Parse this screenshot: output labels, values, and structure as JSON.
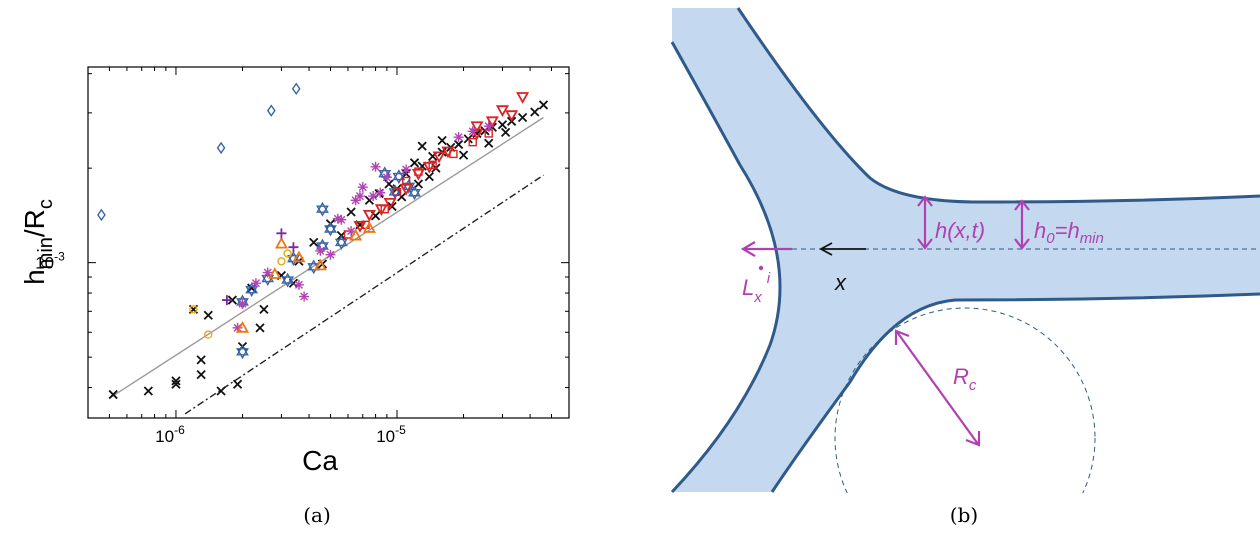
{
  "figure": {
    "caption_a": "(a)",
    "caption_b": "(b)"
  },
  "chart_data": {
    "type": "scatter",
    "x_scale": "log",
    "y_scale": "log",
    "xlabel": "Ca",
    "ylabel_main": "h",
    "ylabel_sub1": "min",
    "ylabel_mid": "/R",
    "ylabel_sub2": "c",
    "xlim": [
      4e-07,
      6e-05
    ],
    "ylim": [
      0.00032,
      0.0042
    ],
    "x_ticks": [
      {
        "value": 1e-06,
        "base": "10",
        "exp": "-6"
      },
      {
        "value": 1e-05,
        "base": "10",
        "exp": "-5"
      }
    ],
    "y_ticks": [
      {
        "value": 0.001,
        "base": "10",
        "exp": "-3"
      }
    ],
    "grid": false,
    "legend": "none",
    "colors": {
      "black": "#111111",
      "blue": "#3a64a8",
      "red": "#dd2222",
      "magenta": "#b444b4",
      "orange": "#ee7711",
      "yellow": "#e8a818",
      "purple": "#7a2a9a",
      "fit": "#999999"
    },
    "lines": [
      {
        "style": "solid",
        "color": "#999999",
        "points": [
          [
            5e-07,
            0.00037
          ],
          [
            4.6e-05,
            0.0029
          ]
        ]
      },
      {
        "style": "dashdot",
        "color": "#222222",
        "points": [
          [
            1.1e-06,
            0.00033
          ],
          [
            4.6e-05,
            0.0019
          ]
        ]
      }
    ],
    "series": [
      {
        "marker": "x",
        "color": "#111111",
        "points": [
          [
            5.2e-07,
            0.00038
          ],
          [
            7.5e-07,
            0.00039
          ],
          [
            1e-06,
            0.00041
          ],
          [
            1e-06,
            0.00042
          ],
          [
            1.3e-06,
            0.00044
          ],
          [
            1.3e-06,
            0.00049
          ],
          [
            1.6e-06,
            0.00039
          ],
          [
            1.9e-06,
            0.00041
          ],
          [
            2e-06,
            0.00054
          ],
          [
            2.4e-06,
            0.00062
          ],
          [
            1.2e-06,
            0.00071
          ],
          [
            1.4e-06,
            0.00068
          ],
          [
            1.8e-06,
            0.00076
          ],
          [
            2.2e-06,
            0.00083
          ],
          [
            2.5e-06,
            0.00071
          ],
          [
            3e-06,
            0.00091
          ],
          [
            3.4e-06,
            0.00086
          ],
          [
            3.6e-06,
            0.00101
          ],
          [
            4.2e-06,
            0.00116
          ],
          [
            4.6e-06,
            0.00099
          ],
          [
            5e-06,
            0.00133
          ],
          [
            5.6e-06,
            0.00122
          ],
          [
            6.2e-06,
            0.00145
          ],
          [
            6.8e-06,
            0.00132
          ],
          [
            7.5e-06,
            0.00158
          ],
          [
            8.3e-06,
            0.00166
          ],
          [
            9.2e-06,
            0.00178
          ],
          [
            1e-05,
            0.00172
          ],
          [
            1.1e-05,
            0.00192
          ],
          [
            1.2e-05,
            0.00208
          ],
          [
            1.3e-05,
            0.00203
          ],
          [
            1.45e-05,
            0.00218
          ],
          [
            1.6e-05,
            0.00225
          ],
          [
            1.75e-05,
            0.00233
          ],
          [
            1.9e-05,
            0.00238
          ],
          [
            2.1e-05,
            0.00248
          ],
          [
            2.3e-05,
            0.00258
          ],
          [
            2.5e-05,
            0.00263
          ],
          [
            2.7e-05,
            0.0027
          ],
          [
            3e-05,
            0.00275
          ],
          [
            3.3e-05,
            0.00282
          ],
          [
            3.7e-05,
            0.0029
          ],
          [
            4.2e-05,
            0.00302
          ],
          [
            4.6e-05,
            0.00318
          ],
          [
            8e-06,
            0.00141
          ],
          [
            9.5e-06,
            0.00151
          ],
          [
            1.05e-05,
            0.00162
          ],
          [
            1.25e-05,
            0.00178
          ],
          [
            1.4e-05,
            0.00188
          ],
          [
            1.5e-05,
            0.002
          ],
          [
            2e-05,
            0.0022
          ],
          [
            2.6e-05,
            0.0024
          ],
          [
            3.1e-05,
            0.0026
          ],
          [
            1.3e-05,
            0.00235
          ],
          [
            1.6e-05,
            0.00245
          ]
        ]
      },
      {
        "marker": "diamond",
        "color": "#3a64a8",
        "points": [
          [
            4.6e-07,
            0.00142
          ],
          [
            1.6e-06,
            0.00232
          ],
          [
            2.7e-06,
            0.00305
          ],
          [
            3.5e-06,
            0.00358
          ]
        ]
      },
      {
        "marker": "hexagram",
        "color": "#3a64a8",
        "points": [
          [
            2e-06,
            0.00052
          ],
          [
            2e-06,
            0.00075
          ],
          [
            2.2e-06,
            0.00082
          ],
          [
            2.6e-06,
            0.00089
          ],
          [
            3.2e-06,
            0.00088
          ],
          [
            3.4e-06,
            0.00103
          ],
          [
            4.2e-06,
            0.00097
          ],
          [
            4.6e-06,
            0.00113
          ],
          [
            5e-06,
            0.00128
          ],
          [
            5.6e-06,
            0.00116
          ],
          [
            4.6e-06,
            0.00148
          ],
          [
            8.8e-06,
            0.00192
          ],
          [
            1.02e-05,
            0.00188
          ],
          [
            1.13e-05,
            0.00175
          ],
          [
            1.2e-05,
            0.00167
          ],
          [
            9.8e-06,
            0.00168
          ]
        ]
      },
      {
        "marker": "triangle-down",
        "color": "#dd2222",
        "points": [
          [
            6.8e-06,
            0.00131
          ],
          [
            7.5e-06,
            0.00142
          ],
          [
            8.5e-06,
            0.00148
          ],
          [
            9.3e-06,
            0.00155
          ],
          [
            1.1e-05,
            0.00172
          ],
          [
            1.25e-05,
            0.00192
          ],
          [
            1.4e-05,
            0.00202
          ],
          [
            1.55e-05,
            0.00218
          ],
          [
            1.7e-05,
            0.00226
          ],
          [
            2.3e-05,
            0.00258
          ],
          [
            2.7e-05,
            0.00282
          ],
          [
            3e-05,
            0.00306
          ],
          [
            3.7e-05,
            0.00337
          ],
          [
            2.3e-05,
            0.00272
          ],
          [
            3.3e-05,
            0.00295
          ]
        ]
      },
      {
        "marker": "square",
        "color": "#dd2222",
        "points": [
          [
            6e-06,
            0.00123
          ],
          [
            7.2e-06,
            0.00132
          ],
          [
            8.8e-06,
            0.00148
          ],
          [
            1e-05,
            0.00168
          ],
          [
            1.1e-05,
            0.00182
          ],
          [
            1.25e-05,
            0.00195
          ],
          [
            1.45e-05,
            0.00205
          ],
          [
            1.8e-05,
            0.00222
          ],
          [
            2.2e-05,
            0.00242
          ],
          [
            2.6e-05,
            0.00258
          ]
        ]
      },
      {
        "marker": "asterisk",
        "color": "#b444b4",
        "points": [
          [
            1.9e-06,
            0.00062
          ],
          [
            2e-06,
            0.00074
          ],
          [
            2.6e-06,
            0.00093
          ],
          [
            3.6e-06,
            0.00085
          ],
          [
            4.5e-06,
            0.00109
          ],
          [
            5e-06,
            0.00106
          ],
          [
            5.6e-06,
            0.00137
          ],
          [
            6.2e-06,
            0.00126
          ],
          [
            6.5e-06,
            0.00158
          ],
          [
            7e-06,
            0.00174
          ],
          [
            7.8e-06,
            0.00163
          ],
          [
            8e-06,
            0.00202
          ],
          [
            9e-06,
            0.00187
          ],
          [
            1.1e-05,
            0.00198
          ],
          [
            1.9e-05,
            0.00251
          ],
          [
            2.2e-05,
            0.00262
          ],
          [
            2.6e-05,
            0.00272
          ],
          [
            3.8e-06,
            0.00078
          ],
          [
            2.3e-06,
            0.00086
          ],
          [
            5.4e-06,
            0.00138
          ],
          [
            6.8e-06,
            0.00163
          ],
          [
            8.4e-06,
            0.00167
          ]
        ]
      },
      {
        "marker": "triangle-up",
        "color": "#ee7711",
        "points": [
          [
            2e-06,
            0.00062
          ],
          [
            2.8e-06,
            0.00092
          ],
          [
            3.6e-06,
            0.00104
          ],
          [
            4.5e-06,
            0.00098
          ],
          [
            6.5e-06,
            0.00122
          ],
          [
            7.5e-06,
            0.00129
          ],
          [
            3e-06,
            0.00115
          ]
        ]
      },
      {
        "marker": "circle",
        "color": "#e8a818",
        "points": [
          [
            1.2e-06,
            0.00071
          ],
          [
            1.4e-06,
            0.00059
          ],
          [
            3.2e-06,
            0.00107
          ],
          [
            3e-06,
            0.00101
          ]
        ]
      },
      {
        "marker": "plus",
        "color": "#7a2a9a",
        "points": [
          [
            1.7e-06,
            0.00076
          ],
          [
            3e-06,
            0.00124
          ],
          [
            3.4e-06,
            0.00112
          ]
        ]
      }
    ]
  },
  "schematic": {
    "colors": {
      "fill": "#c4d9ef",
      "outline": "#2f5a8a",
      "magenta": "#b041b0",
      "dashed": "#2f5a8a",
      "arrow": "#111111"
    },
    "labels": {
      "h_xt": "h(x,t)",
      "h0_main": "h",
      "h0_sub": "0",
      "h0_rest": "=h",
      "h0_sub2": "min",
      "x": "x",
      "L_main": "L",
      "L_sub": "x",
      "L_sup": "i",
      "Rc_main": "R",
      "Rc_sub": "c"
    }
  }
}
